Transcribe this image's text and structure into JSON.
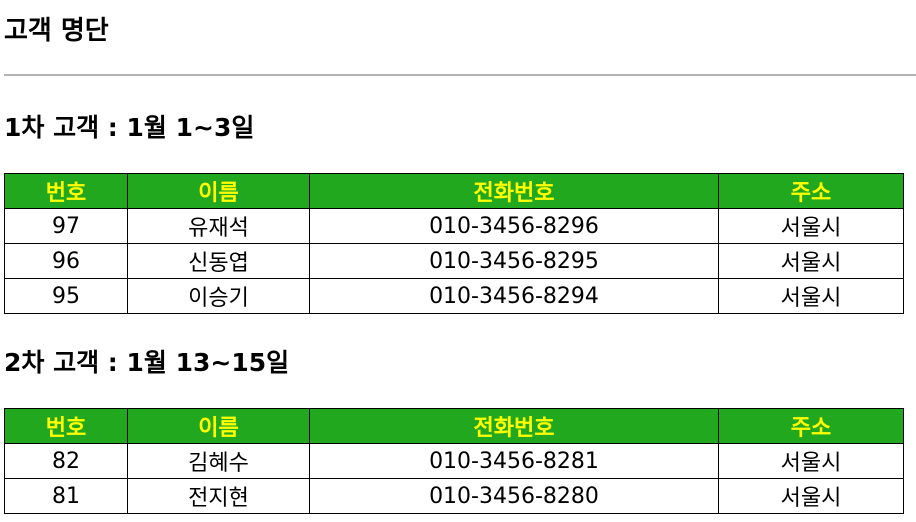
{
  "page": {
    "title": "고객 명단"
  },
  "sections": [
    {
      "heading": "1차 고객 : 1월 1~3일",
      "columns": [
        "번호",
        "이름",
        "전화번호",
        "주소"
      ],
      "rows": [
        [
          "97",
          "유재석",
          "010-3456-8296",
          "서울시"
        ],
        [
          "96",
          "신동엽",
          "010-3456-8295",
          "서울시"
        ],
        [
          "95",
          "이승기",
          "010-3456-8294",
          "서울시"
        ]
      ]
    },
    {
      "heading": "2차 고객 : 1월 13~15일",
      "columns": [
        "번호",
        "이름",
        "전화번호",
        "주소"
      ],
      "rows": [
        [
          "82",
          "김혜수",
          "010-3456-8281",
          "서울시"
        ],
        [
          "81",
          "전지현",
          "010-3456-8280",
          "서울시"
        ]
      ]
    }
  ],
  "colors": {
    "header_bg": "#22a81f",
    "header_text": "#ffff00",
    "divider": "#b4b4b4"
  }
}
